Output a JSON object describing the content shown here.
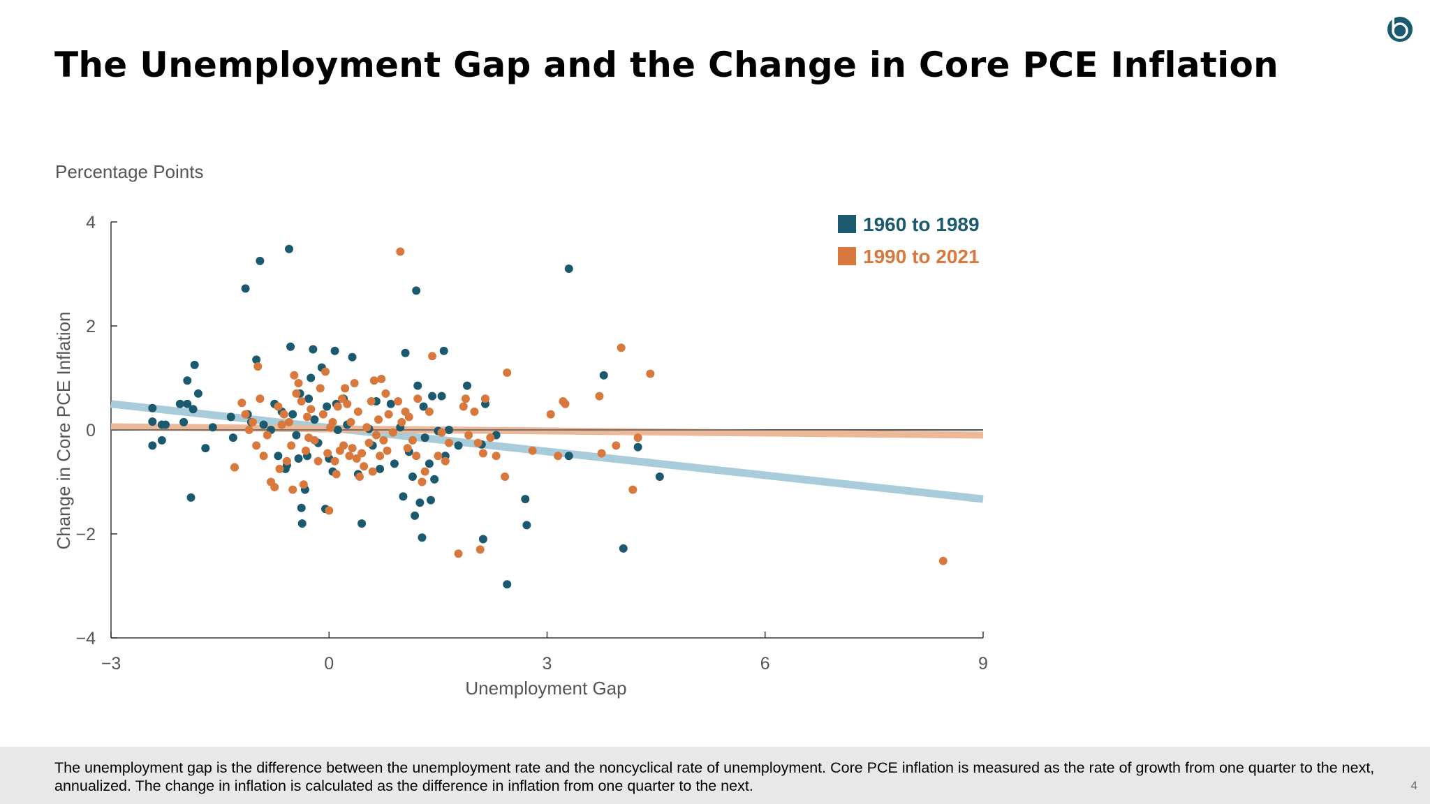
{
  "slide": {
    "title": "The Unemployment Gap and the Change in Core PCE Inflation",
    "footnote": "The unemployment gap is the difference between the unemployment rate and the noncyclical rate of unemployment. Core PCE inflation is measured as the rate of growth from one quarter to the next, annualized. The change in inflation is calculated as the difference in inflation from one quarter to the next.",
    "page_number": "4",
    "logo_icon": "bank-logo-icon"
  },
  "chart_data": {
    "type": "scatter",
    "units_label": "Percentage Points",
    "xlabel": "Unemployment Gap",
    "ylabel": "Change in Core PCE Inflation",
    "xlim": [
      -3,
      9
    ],
    "ylim": [
      -4,
      4
    ],
    "x_ticks": [
      -3,
      0,
      3,
      6,
      9
    ],
    "x_tick_labels": [
      "−3",
      "0",
      "3",
      "6",
      "9"
    ],
    "y_ticks": [
      -4,
      -2,
      0,
      2,
      4
    ],
    "y_tick_labels": [
      "−4",
      "−2",
      "0",
      "2",
      "4"
    ],
    "legend_position": "top-right",
    "grid": false,
    "series": [
      {
        "name": "1960 to 1989",
        "color": "#1b5a6e",
        "trend_color": "#a8ccd9",
        "trend": [
          [
            -3,
            0.5
          ],
          [
            9,
            -1.33
          ]
        ],
        "points": [
          [
            -2.43,
            0.42
          ],
          [
            -2.43,
            0.16
          ],
          [
            -2.43,
            -0.3
          ],
          [
            -2.3,
            0.1
          ],
          [
            -2.3,
            -0.2
          ],
          [
            -2.25,
            0.1
          ],
          [
            -2.05,
            0.5
          ],
          [
            -2.0,
            0.15
          ],
          [
            -1.95,
            0.5
          ],
          [
            -1.95,
            0.95
          ],
          [
            -1.9,
            -1.3
          ],
          [
            -1.87,
            0.4
          ],
          [
            -1.85,
            1.25
          ],
          [
            -1.8,
            0.7
          ],
          [
            -1.7,
            -0.35
          ],
          [
            -1.6,
            0.05
          ],
          [
            -1.35,
            0.25
          ],
          [
            -1.32,
            -0.15
          ],
          [
            -1.15,
            2.72
          ],
          [
            -1.12,
            0.3
          ],
          [
            -1.07,
            0.15
          ],
          [
            -1.0,
            1.35
          ],
          [
            -0.95,
            3.25
          ],
          [
            -0.9,
            0.1
          ],
          [
            -0.8,
            0.0
          ],
          [
            -0.75,
            0.5
          ],
          [
            -0.7,
            -0.5
          ],
          [
            -0.65,
            0.35
          ],
          [
            -0.6,
            -0.75
          ],
          [
            -0.58,
            -0.68
          ],
          [
            -0.55,
            3.48
          ],
          [
            -0.53,
            1.6
          ],
          [
            -0.5,
            0.3
          ],
          [
            -0.45,
            -0.1
          ],
          [
            -0.42,
            -0.55
          ],
          [
            -0.4,
            0.7
          ],
          [
            -0.38,
            -1.5
          ],
          [
            -0.37,
            -1.8
          ],
          [
            -0.33,
            -1.15
          ],
          [
            -0.3,
            -0.5
          ],
          [
            -0.28,
            0.6
          ],
          [
            -0.25,
            1.0
          ],
          [
            -0.22,
            1.55
          ],
          [
            -0.2,
            0.2
          ],
          [
            -0.15,
            -0.25
          ],
          [
            -0.1,
            1.2
          ],
          [
            -0.05,
            -1.52
          ],
          [
            -0.03,
            0.45
          ],
          [
            0.0,
            -0.55
          ],
          [
            0.05,
            -0.8
          ],
          [
            0.08,
            1.52
          ],
          [
            0.1,
            0.5
          ],
          [
            0.12,
            0.0
          ],
          [
            0.2,
            0.6
          ],
          [
            0.25,
            0.1
          ],
          [
            0.32,
            1.4
          ],
          [
            0.4,
            -0.85
          ],
          [
            0.45,
            -1.8
          ],
          [
            0.55,
            0.02
          ],
          [
            0.6,
            -0.3
          ],
          [
            0.65,
            0.55
          ],
          [
            0.7,
            -0.75
          ],
          [
            0.85,
            0.5
          ],
          [
            0.9,
            -0.65
          ],
          [
            0.98,
            0.05
          ],
          [
            1.02,
            -1.28
          ],
          [
            1.05,
            1.48
          ],
          [
            1.1,
            -0.42
          ],
          [
            1.15,
            -0.9
          ],
          [
            1.18,
            -1.65
          ],
          [
            1.2,
            2.68
          ],
          [
            1.22,
            0.85
          ],
          [
            1.25,
            -1.4
          ],
          [
            1.28,
            -2.07
          ],
          [
            1.3,
            0.45
          ],
          [
            1.32,
            -0.15
          ],
          [
            1.38,
            -0.65
          ],
          [
            1.4,
            -1.35
          ],
          [
            1.42,
            0.65
          ],
          [
            1.45,
            -0.95
          ],
          [
            1.5,
            -0.02
          ],
          [
            1.55,
            0.65
          ],
          [
            1.58,
            1.52
          ],
          [
            1.6,
            -0.5
          ],
          [
            1.65,
            0.0
          ],
          [
            1.78,
            -0.3
          ],
          [
            1.9,
            0.85
          ],
          [
            2.1,
            -0.28
          ],
          [
            2.12,
            -2.1
          ],
          [
            2.15,
            0.5
          ],
          [
            2.3,
            -0.1
          ],
          [
            2.45,
            -2.97
          ],
          [
            2.7,
            -1.33
          ],
          [
            2.72,
            -1.83
          ],
          [
            3.3,
            3.1
          ],
          [
            3.3,
            -0.5
          ],
          [
            3.78,
            1.05
          ],
          [
            4.05,
            -2.28
          ],
          [
            4.25,
            -0.33
          ],
          [
            4.55,
            -0.9
          ]
        ]
      },
      {
        "name": "1990 to 2021",
        "color": "#d9783d",
        "trend_color": "#ebb898",
        "trend": [
          [
            -3,
            0.06
          ],
          [
            9,
            -0.1
          ]
        ],
        "points": [
          [
            -1.3,
            -0.72
          ],
          [
            -1.2,
            0.52
          ],
          [
            -1.15,
            0.3
          ],
          [
            -1.1,
            0.0
          ],
          [
            -1.05,
            0.15
          ],
          [
            -1.0,
            -0.3
          ],
          [
            -0.98,
            1.22
          ],
          [
            -0.95,
            0.6
          ],
          [
            -0.9,
            -0.5
          ],
          [
            -0.85,
            -0.1
          ],
          [
            -0.8,
            -1.0
          ],
          [
            -0.75,
            -1.1
          ],
          [
            -0.7,
            0.45
          ],
          [
            -0.68,
            -0.75
          ],
          [
            -0.65,
            0.1
          ],
          [
            -0.62,
            0.3
          ],
          [
            -0.58,
            -0.6
          ],
          [
            -0.55,
            0.15
          ],
          [
            -0.52,
            -0.3
          ],
          [
            -0.5,
            -1.15
          ],
          [
            -0.48,
            1.05
          ],
          [
            -0.45,
            0.7
          ],
          [
            -0.42,
            0.9
          ],
          [
            -0.38,
            0.55
          ],
          [
            -0.35,
            -1.05
          ],
          [
            -0.32,
            -0.4
          ],
          [
            -0.3,
            0.25
          ],
          [
            -0.28,
            -0.15
          ],
          [
            -0.25,
            0.4
          ],
          [
            -0.2,
            -0.2
          ],
          [
            -0.15,
            -0.6
          ],
          [
            -0.12,
            0.8
          ],
          [
            -0.08,
            0.3
          ],
          [
            -0.05,
            1.12
          ],
          [
            -0.02,
            -0.45
          ],
          [
            0.0,
            -1.55
          ],
          [
            0.02,
            0.05
          ],
          [
            0.05,
            0.15
          ],
          [
            0.08,
            -0.6
          ],
          [
            0.1,
            -0.85
          ],
          [
            0.12,
            0.45
          ],
          [
            0.15,
            -0.4
          ],
          [
            0.18,
            0.6
          ],
          [
            0.2,
            -0.3
          ],
          [
            0.22,
            0.8
          ],
          [
            0.25,
            0.5
          ],
          [
            0.28,
            -0.5
          ],
          [
            0.3,
            0.15
          ],
          [
            0.32,
            -0.35
          ],
          [
            0.35,
            0.9
          ],
          [
            0.38,
            -0.55
          ],
          [
            0.4,
            0.35
          ],
          [
            0.42,
            -0.9
          ],
          [
            0.45,
            -0.45
          ],
          [
            0.48,
            -0.7
          ],
          [
            0.52,
            0.05
          ],
          [
            0.55,
            -0.25
          ],
          [
            0.58,
            0.55
          ],
          [
            0.6,
            -0.8
          ],
          [
            0.62,
            0.95
          ],
          [
            0.65,
            -0.1
          ],
          [
            0.68,
            0.2
          ],
          [
            0.7,
            -0.5
          ],
          [
            0.72,
            0.98
          ],
          [
            0.75,
            -0.2
          ],
          [
            0.78,
            0.7
          ],
          [
            0.8,
            -0.4
          ],
          [
            0.82,
            0.3
          ],
          [
            0.88,
            -0.05
          ],
          [
            0.95,
            0.55
          ],
          [
            0.98,
            3.43
          ],
          [
            1.0,
            0.15
          ],
          [
            1.05,
            0.35
          ],
          [
            1.08,
            -0.35
          ],
          [
            1.1,
            0.25
          ],
          [
            1.15,
            -0.2
          ],
          [
            1.2,
            -0.5
          ],
          [
            1.22,
            0.6
          ],
          [
            1.28,
            -1.0
          ],
          [
            1.32,
            -0.8
          ],
          [
            1.38,
            0.35
          ],
          [
            1.42,
            1.42
          ],
          [
            1.5,
            -0.5
          ],
          [
            1.55,
            -0.05
          ],
          [
            1.6,
            -0.6
          ],
          [
            1.65,
            -0.25
          ],
          [
            1.78,
            -2.38
          ],
          [
            1.85,
            0.45
          ],
          [
            1.88,
            0.6
          ],
          [
            1.92,
            -0.1
          ],
          [
            2.0,
            0.35
          ],
          [
            2.05,
            -0.25
          ],
          [
            2.08,
            -2.3
          ],
          [
            2.12,
            -0.45
          ],
          [
            2.15,
            0.6
          ],
          [
            2.22,
            -0.15
          ],
          [
            2.3,
            -0.5
          ],
          [
            2.42,
            -0.9
          ],
          [
            2.45,
            1.1
          ],
          [
            2.8,
            -0.4
          ],
          [
            3.05,
            0.3
          ],
          [
            3.15,
            -0.5
          ],
          [
            3.22,
            0.55
          ],
          [
            3.25,
            0.5
          ],
          [
            3.72,
            0.65
          ],
          [
            3.75,
            -0.45
          ],
          [
            3.95,
            -0.3
          ],
          [
            4.02,
            1.58
          ],
          [
            4.18,
            -1.15
          ],
          [
            4.25,
            -0.15
          ],
          [
            4.42,
            1.08
          ],
          [
            8.45,
            -2.52
          ]
        ]
      }
    ]
  }
}
